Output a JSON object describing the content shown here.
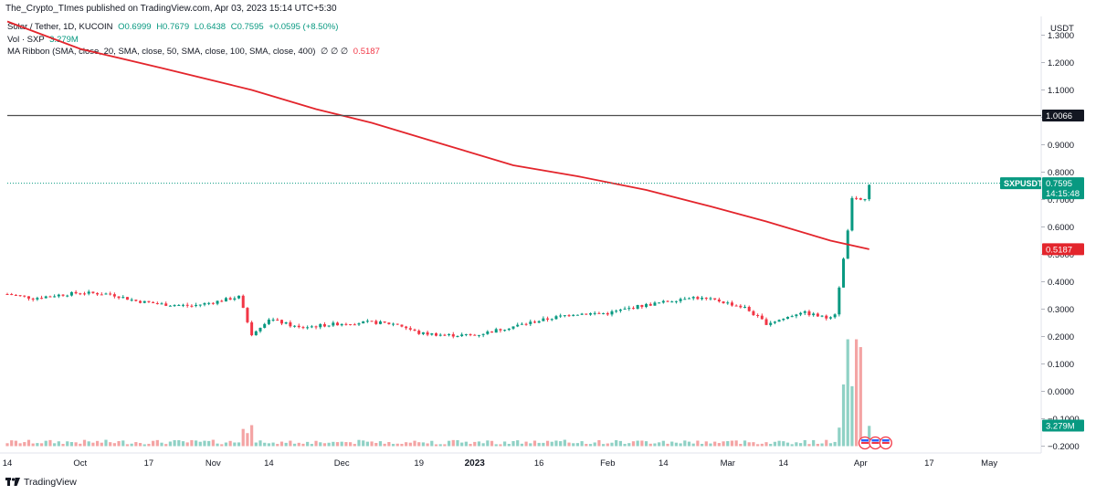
{
  "header": {
    "published": "The_Crypto_TImes published on TradingView.com, Apr 03, 2023 15:14 UTC+5:30"
  },
  "legend": {
    "symbol": "Solar / Tether, 1D, KUCOIN",
    "open": "O0.6999",
    "high": "H0.7679",
    "low": "L0.6438",
    "close": "C0.7595",
    "change": "+0.0595 (+8.50%)",
    "vol_label": "Vol · SXP",
    "vol_value": "3.279M",
    "ma_label": "MA Ribbon (SMA, close, 20, SMA, close, 50, SMA, close, 100, SMA, close, 400)",
    "ma_empties": "∅ ∅ ∅",
    "ma_value": "0.5187"
  },
  "footer": {
    "brand": "TradingView"
  },
  "colors": {
    "up": "#089981",
    "down": "#f23645",
    "vol_up": "#8fd1c5",
    "vol_down": "#f4a4a4",
    "ma": "#e3252c",
    "hline": "#4d4d4d"
  },
  "chart_data": {
    "type": "candlestick",
    "currency": "USDT",
    "y_ticks": [
      "1.3000",
      "1.2000",
      "1.1000",
      "1.0000",
      "0.9000",
      "0.8000",
      "0.7000",
      "0.6000",
      "0.5000",
      "0.4000",
      "0.3000",
      "0.2000",
      "0.1000",
      "0.0000",
      "−0.1000",
      "−0.2000"
    ],
    "ylim": [
      -0.225,
      1.355
    ],
    "x_ticks": [
      "14",
      "Oct",
      "17",
      "Nov",
      "14",
      "Dec",
      "19",
      "2023",
      "16",
      "Feb",
      "14",
      "Mar",
      "14",
      "Apr",
      "17",
      "May"
    ],
    "x_tick_dates": [
      "2022-09-14",
      "2022-10-01",
      "2022-10-17",
      "2022-11-01",
      "2022-11-14",
      "2022-12-01",
      "2022-12-19",
      "2023-01-01",
      "2023-01-16",
      "2023-02-01",
      "2023-02-14",
      "2023-03-01",
      "2023-03-14",
      "2023-04-01",
      "2023-04-17",
      "2023-05-01"
    ],
    "horizontal_line": {
      "value": 1.0066,
      "label": "1.0066"
    },
    "last_price": {
      "label": "SXPUSDT",
      "value": "0.7595",
      "countdown": "14:15:48"
    },
    "ma_last": {
      "value": "0.5187"
    },
    "volume_last": {
      "value": "3.279M"
    },
    "ohlc_points": [
      {
        "date": "2022-09-14",
        "price": 0.355
      },
      {
        "date": "2022-09-20",
        "price": 0.34
      },
      {
        "date": "2022-09-25",
        "price": 0.35
      },
      {
        "date": "2022-10-01",
        "price": 0.36
      },
      {
        "date": "2022-10-08",
        "price": 0.355
      },
      {
        "date": "2022-10-14",
        "price": 0.33
      },
      {
        "date": "2022-10-20",
        "price": 0.318
      },
      {
        "date": "2022-10-27",
        "price": 0.312
      },
      {
        "date": "2022-11-01",
        "price": 0.325
      },
      {
        "date": "2022-11-07",
        "price": 0.345
      },
      {
        "date": "2022-11-09",
        "price": 0.255
      },
      {
        "date": "2022-11-10",
        "price": 0.21
      },
      {
        "date": "2022-11-14",
        "price": 0.265
      },
      {
        "date": "2022-11-21",
        "price": 0.232
      },
      {
        "date": "2022-12-01",
        "price": 0.248
      },
      {
        "date": "2022-12-08",
        "price": 0.252
      },
      {
        "date": "2022-12-14",
        "price": 0.245
      },
      {
        "date": "2022-12-19",
        "price": 0.212
      },
      {
        "date": "2022-12-26",
        "price": 0.205
      },
      {
        "date": "2023-01-01",
        "price": 0.205
      },
      {
        "date": "2023-01-08",
        "price": 0.23
      },
      {
        "date": "2023-01-16",
        "price": 0.258
      },
      {
        "date": "2023-01-24",
        "price": 0.283
      },
      {
        "date": "2023-02-01",
        "price": 0.285
      },
      {
        "date": "2023-02-08",
        "price": 0.31
      },
      {
        "date": "2023-02-14",
        "price": 0.325
      },
      {
        "date": "2023-02-20",
        "price": 0.345
      },
      {
        "date": "2023-02-27",
        "price": 0.33
      },
      {
        "date": "2023-03-05",
        "price": 0.305
      },
      {
        "date": "2023-03-10",
        "price": 0.248
      },
      {
        "date": "2023-03-14",
        "price": 0.265
      },
      {
        "date": "2023-03-18",
        "price": 0.29
      },
      {
        "date": "2023-03-24",
        "price": 0.268
      },
      {
        "date": "2023-03-26",
        "price": 0.285
      },
      {
        "date": "2023-03-28",
        "price": 0.48
      },
      {
        "date": "2023-03-30",
        "price": 0.7
      },
      {
        "date": "2023-04-02",
        "price": 0.7
      },
      {
        "date": "2023-04-03",
        "price": 0.7595
      }
    ],
    "ma_points": [
      {
        "date": "2022-09-14",
        "value": 1.35
      },
      {
        "date": "2022-10-01",
        "value": 1.25
      },
      {
        "date": "2022-10-20",
        "value": 1.18
      },
      {
        "date": "2022-11-10",
        "value": 1.1
      },
      {
        "date": "2022-11-25",
        "value": 1.03
      },
      {
        "date": "2022-12-08",
        "value": 0.98
      },
      {
        "date": "2022-12-25",
        "value": 0.9
      },
      {
        "date": "2023-01-10",
        "value": 0.825
      },
      {
        "date": "2023-01-25",
        "value": 0.785
      },
      {
        "date": "2023-02-10",
        "value": 0.735
      },
      {
        "date": "2023-02-25",
        "value": 0.675
      },
      {
        "date": "2023-03-10",
        "value": 0.62
      },
      {
        "date": "2023-03-25",
        "value": 0.55
      },
      {
        "date": "2023-04-03",
        "value": 0.5187
      }
    ]
  }
}
